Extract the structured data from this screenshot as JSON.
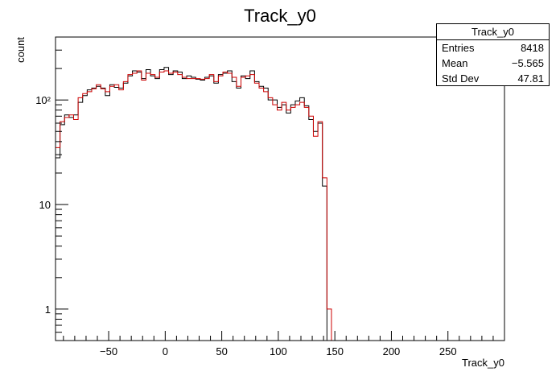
{
  "chart_data": {
    "type": "histogram",
    "title": "Track_y0",
    "xlabel": "Track_y0",
    "ylabel": "count",
    "xlim": [
      -97,
      300
    ],
    "ylim": [
      0.5,
      400
    ],
    "yscale": "log",
    "xticks": [
      -50,
      0,
      50,
      100,
      150,
      200,
      250
    ],
    "xtick_labels": [
      "−50",
      "0",
      "50",
      "100",
      "150",
      "200",
      "250"
    ],
    "yticks": [
      1,
      10,
      100
    ],
    "ytick_labels": [
      "1",
      "10",
      "10²"
    ],
    "bin_width": 4,
    "series": [
      {
        "color": "#000000",
        "values": [
          28,
          58,
          72,
          68,
          72,
          95,
          110,
          125,
          130,
          135,
          130,
          110,
          140,
          132,
          130,
          145,
          170,
          190,
          185,
          160,
          195,
          170,
          160,
          195,
          205,
          175,
          190,
          185,
          160,
          170,
          165,
          158,
          155,
          165,
          170,
          145,
          175,
          180,
          190,
          150,
          130,
          170,
          160,
          190,
          150,
          135,
          130,
          100,
          100,
          85,
          90,
          75,
          90,
          98,
          105,
          88,
          65,
          50,
          60,
          15,
          0.5,
          0,
          0,
          0,
          0,
          0,
          0,
          0,
          0,
          0,
          0,
          0,
          0,
          0,
          0,
          0,
          0,
          0,
          0,
          0,
          0,
          0,
          0,
          0,
          0,
          0,
          0,
          0,
          0,
          0,
          0,
          0,
          0,
          0,
          0,
          0,
          0,
          0,
          0,
          0
        ]
      },
      {
        "color": "#cc0000",
        "values": [
          35,
          62,
          68,
          72,
          65,
          105,
          115,
          120,
          128,
          140,
          128,
          120,
          135,
          140,
          125,
          150,
          175,
          180,
          190,
          155,
          180,
          175,
          165,
          185,
          190,
          180,
          185,
          175,
          165,
          160,
          160,
          160,
          158,
          160,
          175,
          150,
          170,
          185,
          180,
          165,
          135,
          165,
          170,
          175,
          145,
          130,
          120,
          105,
          90,
          80,
          95,
          80,
          85,
          90,
          95,
          85,
          70,
          45,
          62,
          18,
          1,
          0,
          0,
          0,
          0,
          0,
          0,
          0,
          0,
          0,
          0,
          0,
          0,
          0,
          0,
          0,
          0,
          0,
          0,
          0,
          0,
          0,
          0,
          0,
          0,
          0,
          0,
          0,
          0,
          0,
          0,
          0,
          0,
          0,
          0,
          0,
          0,
          0,
          0,
          0
        ]
      }
    ],
    "stats": {
      "title": "Track_y0",
      "rows": [
        {
          "label": "Entries",
          "value": "8418"
        },
        {
          "label": "Mean",
          "value": "−5.565"
        },
        {
          "label": "Std Dev",
          "value": "47.81"
        }
      ]
    }
  }
}
